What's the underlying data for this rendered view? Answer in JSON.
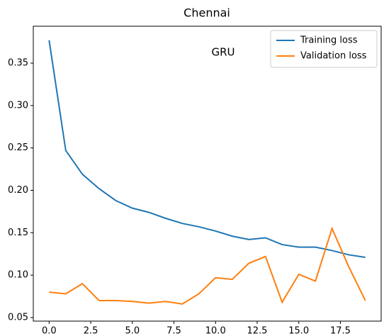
{
  "chart_data": {
    "type": "line",
    "title": "Chennai",
    "annotation": "GRU",
    "annotation_color": "#e8251c",
    "x": [
      0,
      1,
      2,
      3,
      4,
      5,
      6,
      7,
      8,
      9,
      10,
      11,
      12,
      13,
      14,
      15,
      16,
      17,
      18,
      19
    ],
    "series": [
      {
        "name": "Training loss",
        "color": "#1f77b4",
        "values": [
          0.377,
          0.247,
          0.219,
          0.202,
          0.188,
          0.179,
          0.174,
          0.167,
          0.161,
          0.157,
          0.152,
          0.146,
          0.142,
          0.144,
          0.136,
          0.133,
          0.133,
          0.129,
          0.124,
          0.121
        ]
      },
      {
        "name": "Validation loss",
        "color": "#ff7f0e",
        "values": [
          0.08,
          0.078,
          0.09,
          0.07,
          0.07,
          0.069,
          0.067,
          0.069,
          0.066,
          0.078,
          0.097,
          0.095,
          0.114,
          0.122,
          0.068,
          0.101,
          0.093,
          0.155,
          0.11,
          0.07
        ]
      }
    ],
    "xlim": [
      -0.95,
      19.95
    ],
    "xticks": [
      {
        "value": 0,
        "label": "0.0"
      },
      {
        "value": 2.5,
        "label": "2.5"
      },
      {
        "value": 5,
        "label": "5.0"
      },
      {
        "value": 7.5,
        "label": "7.5"
      },
      {
        "value": 10,
        "label": "10.0"
      },
      {
        "value": 12.5,
        "label": "12.5"
      },
      {
        "value": 15,
        "label": "15.0"
      },
      {
        "value": 17.5,
        "label": "17.5"
      }
    ],
    "ylim": [
      0.0458,
      0.3935
    ],
    "yticks": [
      {
        "value": 0.05,
        "label": "0.05"
      },
      {
        "value": 0.1,
        "label": "0.10"
      },
      {
        "value": 0.15,
        "label": "0.15"
      },
      {
        "value": 0.2,
        "label": "0.20"
      },
      {
        "value": 0.25,
        "label": "0.25"
      },
      {
        "value": 0.3,
        "label": "0.30"
      },
      {
        "value": 0.35,
        "label": "0.35"
      }
    ],
    "legend": "upper right"
  }
}
